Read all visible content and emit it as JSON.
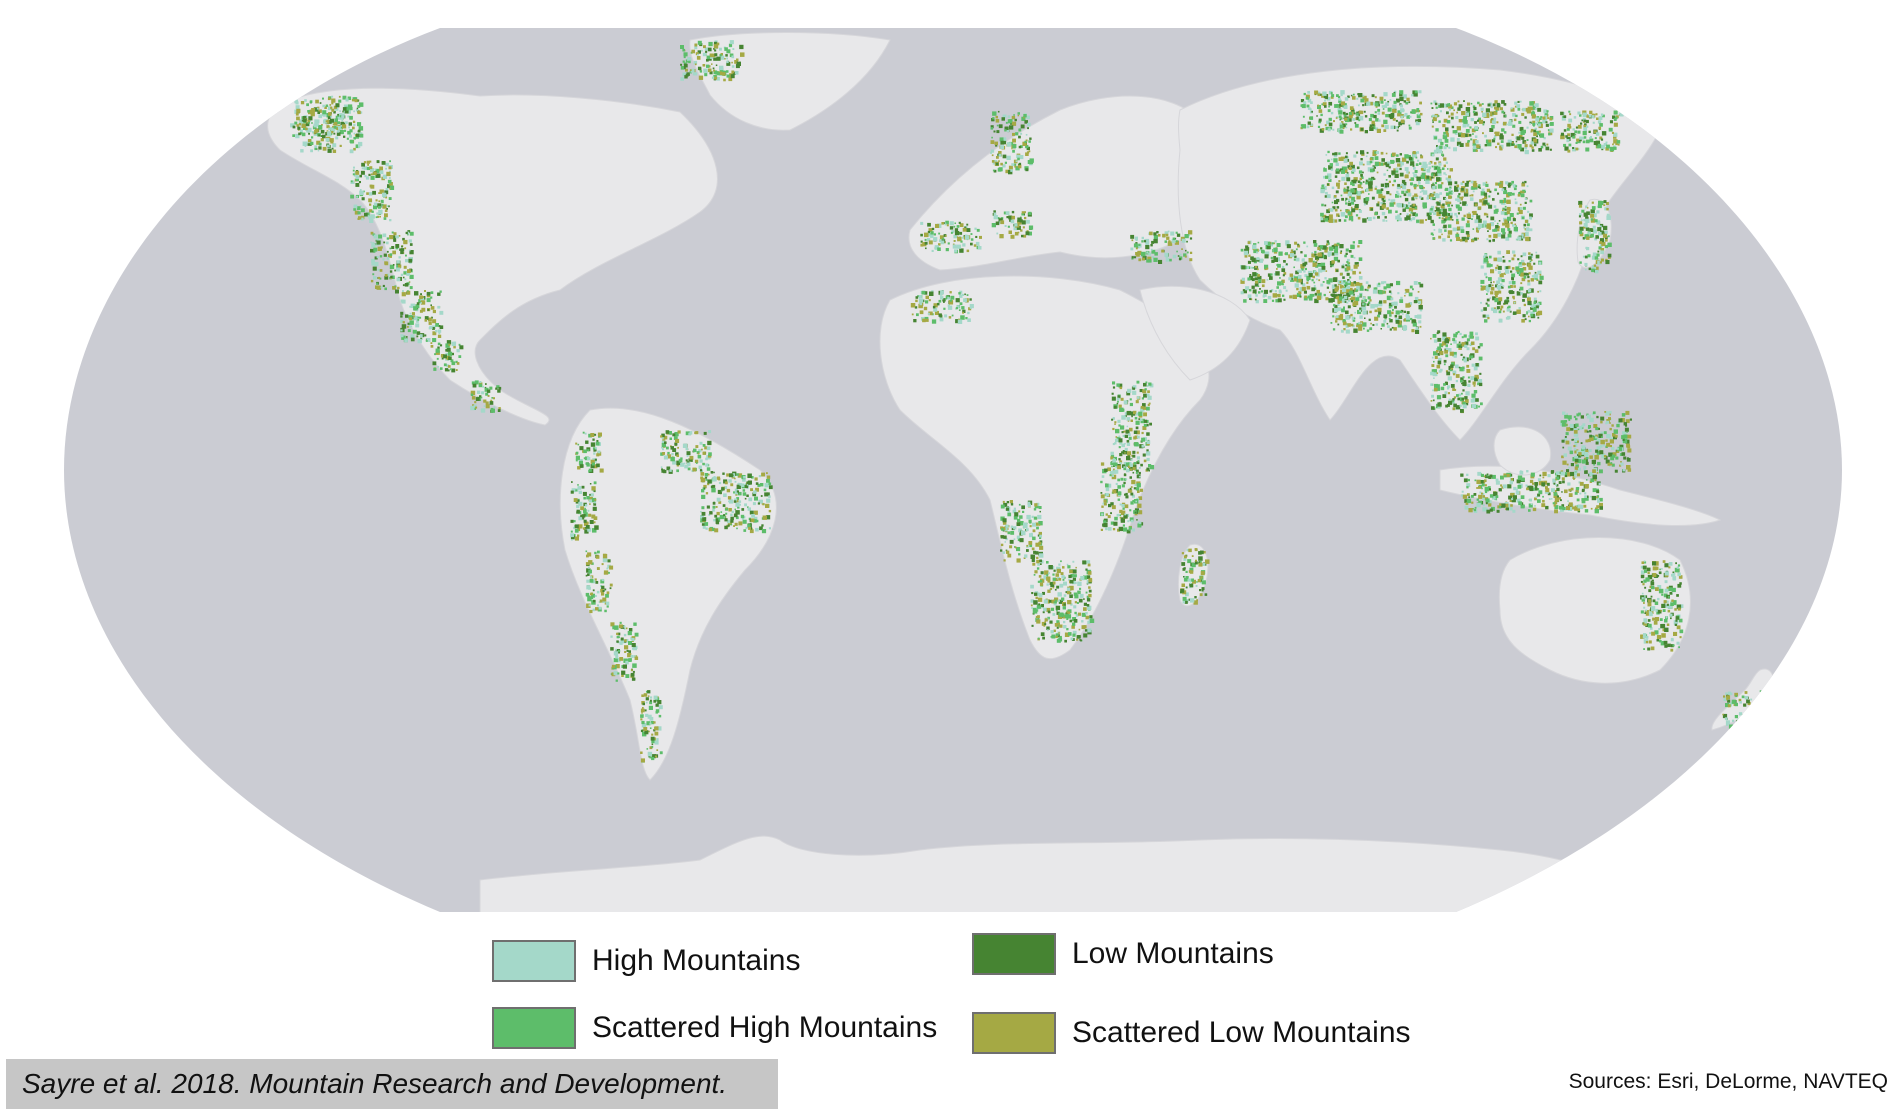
{
  "map": {
    "projection": "Robinson",
    "ocean_color": "#cbccd3",
    "land_color": "#e8e8ea",
    "border_color": "#d6d6da",
    "mountain_regions": [
      "western-north-america",
      "andes",
      "alps",
      "caucasus",
      "himalaya-tibet",
      "central-asia",
      "siberia",
      "east-africa",
      "southern-africa",
      "atlas",
      "brazilian-highlands",
      "scandinavia",
      "greenland-coast",
      "alaska",
      "australia-east",
      "new-zealand",
      "southeast-asia",
      "madagascar",
      "japan"
    ]
  },
  "legend": {
    "items": [
      {
        "label": "High Mountains",
        "color": "#a4d8c9"
      },
      {
        "label": "Low Mountains",
        "color": "#468432"
      },
      {
        "label": "Scattered High Mountains",
        "color": "#5dbd6a"
      },
      {
        "label": "Scattered Low Mountains",
        "color": "#a5a944"
      }
    ]
  },
  "citation": "Sayre et al. 2018. Mountain Research and Development.",
  "sources": "Sources: Esri, DeLorme, NAVTEQ"
}
